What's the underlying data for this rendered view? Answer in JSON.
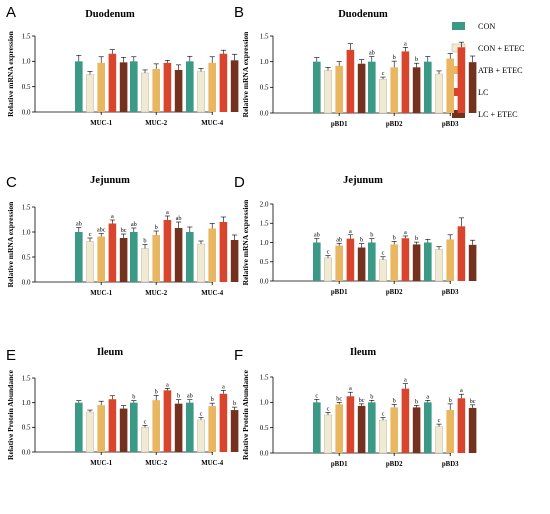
{
  "legend": {
    "entries": [
      {
        "name": "CON",
        "color": "#3a9a86"
      },
      {
        "name": "CON + ETEC",
        "color": "#f1ead3"
      },
      {
        "name": "ATB + ETEC",
        "color": "#e9b761"
      },
      {
        "name": "LC",
        "color": "#d9452c"
      },
      {
        "name": "LC + ETEC",
        "color": "#74311e"
      }
    ]
  },
  "chart_data": [
    {
      "panel": "A",
      "type": "bar",
      "title": "Duodenum",
      "xlabel": "",
      "ylabel": "Relative mRNA expression",
      "ylim": [
        0,
        1.5
      ],
      "yticks": [
        0.0,
        0.5,
        1.0,
        1.5
      ],
      "categories": [
        "MUC-1",
        "MUC-2",
        "MUC-4"
      ],
      "series": [
        {
          "name": "CON",
          "values": [
            1.0,
            1.0,
            1.0
          ],
          "errors": [
            0.12,
            0.09,
            0.1
          ]
        },
        {
          "name": "CON + ETEC",
          "values": [
            0.74,
            0.77,
            0.8
          ],
          "errors": [
            0.06,
            0.06,
            0.06
          ]
        },
        {
          "name": "ATB + ETEC",
          "values": [
            0.97,
            0.85,
            0.97
          ],
          "errors": [
            0.12,
            0.1,
            0.12
          ]
        },
        {
          "name": "LC",
          "values": [
            1.15,
            0.97,
            1.15
          ],
          "errors": [
            0.08,
            0.05,
            0.07
          ]
        },
        {
          "name": "LC + ETEC",
          "values": [
            0.98,
            0.83,
            1.02
          ],
          "errors": [
            0.1,
            0.1,
            0.12
          ]
        }
      ],
      "labels": [
        [
          "",
          "",
          "",
          "",
          ""
        ],
        [
          "",
          "",
          "",
          "",
          ""
        ],
        [
          "",
          "",
          "",
          "",
          ""
        ]
      ]
    },
    {
      "panel": "B",
      "type": "bar",
      "title": "Duodenum",
      "xlabel": "",
      "ylabel": "Relative mRNA expression",
      "ylim": [
        0,
        1.5
      ],
      "yticks": [
        0.0,
        0.5,
        1.0,
        1.5
      ],
      "categories": [
        "pBD1",
        "pBD2",
        "pBD3"
      ],
      "series": [
        {
          "name": "CON",
          "values": [
            1.0,
            1.0,
            1.0
          ],
          "errors": [
            0.08,
            0.1,
            0.1
          ]
        },
        {
          "name": "CON + ETEC",
          "values": [
            0.83,
            0.66,
            0.76
          ],
          "errors": [
            0.06,
            0.04,
            0.06
          ]
        },
        {
          "name": "ATB + ETEC",
          "values": [
            0.92,
            0.89,
            1.06
          ],
          "errors": [
            0.08,
            0.12,
            0.1
          ]
        },
        {
          "name": "LC",
          "values": [
            1.23,
            1.2,
            1.28
          ],
          "errors": [
            0.12,
            0.08,
            0.1
          ]
        },
        {
          "name": "LC + ETEC",
          "values": [
            0.96,
            0.89,
            0.99
          ],
          "errors": [
            0.08,
            0.08,
            0.12
          ]
        }
      ],
      "labels": [
        [
          "",
          "",
          "",
          "",
          ""
        ],
        [
          "ab",
          "c",
          "b",
          "a",
          "b"
        ],
        [
          "",
          "",
          "",
          "",
          ""
        ]
      ]
    },
    {
      "panel": "C",
      "type": "bar",
      "title": "Jejunum",
      "xlabel": "",
      "ylabel": "Relative mRNA expression",
      "ylim": [
        0,
        1.5
      ],
      "yticks": [
        0.0,
        0.5,
        1.0,
        1.5
      ],
      "categories": [
        "MUC-1",
        "MUC-2",
        "MUC-4"
      ],
      "series": [
        {
          "name": "CON",
          "values": [
            1.0,
            1.0,
            1.0
          ],
          "errors": [
            0.09,
            0.08,
            0.1
          ]
        },
        {
          "name": "CON + ETEC",
          "values": [
            0.81,
            0.67,
            0.76
          ],
          "errors": [
            0.07,
            0.08,
            0.06
          ]
        },
        {
          "name": "ATB + ETEC",
          "values": [
            0.91,
            0.94,
            1.07
          ],
          "errors": [
            0.06,
            0.08,
            0.1
          ]
        },
        {
          "name": "LC",
          "values": [
            1.17,
            1.24,
            1.2
          ],
          "errors": [
            0.07,
            0.08,
            0.1
          ]
        },
        {
          "name": "LC + ETEC",
          "values": [
            0.88,
            1.08,
            0.84
          ],
          "errors": [
            0.08,
            0.12,
            0.1
          ]
        }
      ],
      "labels": [
        [
          "ab",
          "c",
          "abc",
          "a",
          "bc"
        ],
        [
          "ab",
          "b",
          "b",
          "a",
          "ab"
        ],
        [
          "",
          "",
          "",
          "",
          ""
        ]
      ]
    },
    {
      "panel": "D",
      "type": "bar",
      "title": "Jejunum",
      "xlabel": "",
      "ylabel": "Relative mRNA expression",
      "ylim": [
        0,
        2.0
      ],
      "yticks": [
        0.0,
        0.5,
        1.0,
        1.5,
        2.0
      ],
      "categories": [
        "pBD1",
        "pBD2",
        "pBD3"
      ],
      "series": [
        {
          "name": "CON",
          "values": [
            1.0,
            1.0,
            1.0
          ],
          "errors": [
            0.1,
            0.1,
            0.08
          ]
        },
        {
          "name": "CON + ETEC",
          "values": [
            0.6,
            0.55,
            0.82
          ],
          "errors": [
            0.06,
            0.08,
            0.07
          ]
        },
        {
          "name": "ATB + ETEC",
          "values": [
            0.92,
            0.95,
            1.08
          ],
          "errors": [
            0.06,
            0.08,
            0.12
          ]
        },
        {
          "name": "LC",
          "values": [
            1.1,
            1.11,
            1.42
          ],
          "errors": [
            0.1,
            0.06,
            0.22
          ]
        },
        {
          "name": "LC + ETEC",
          "values": [
            0.87,
            0.95,
            0.94
          ],
          "errors": [
            0.1,
            0.06,
            0.12
          ]
        }
      ],
      "labels": [
        [
          "ab",
          "c",
          "ab",
          "a",
          "b"
        ],
        [
          "b",
          "c",
          "b",
          "a",
          "b"
        ],
        [
          "",
          "",
          "",
          "",
          ""
        ]
      ]
    },
    {
      "panel": "E",
      "type": "bar",
      "title": "Ileum",
      "xlabel": "",
      "ylabel": "Relative Protein Abundance",
      "ylim": [
        0,
        1.5
      ],
      "yticks": [
        0.0,
        0.5,
        1.0,
        1.5
      ],
      "categories": [
        "MUC-1",
        "MUC-2",
        "MUC-4"
      ],
      "series": [
        {
          "name": "CON",
          "values": [
            1.0,
            1.0,
            1.0
          ],
          "errors": [
            0.04,
            0.04,
            0.06
          ]
        },
        {
          "name": "CON + ETEC",
          "values": [
            0.81,
            0.5,
            0.65
          ],
          "errors": [
            0.04,
            0.04,
            0.05
          ]
        },
        {
          "name": "ATB + ETEC",
          "values": [
            0.95,
            1.05,
            0.93
          ],
          "errors": [
            0.08,
            0.1,
            0.06
          ]
        },
        {
          "name": "LC",
          "values": [
            1.07,
            1.25,
            1.18
          ],
          "errors": [
            0.07,
            0.04,
            0.07
          ]
        },
        {
          "name": "LC + ETEC",
          "values": [
            0.88,
            0.98,
            0.85
          ],
          "errors": [
            0.06,
            0.08,
            0.06
          ]
        }
      ],
      "labels": [
        [
          "",
          "",
          "",
          "",
          ""
        ],
        [
          "b",
          "c",
          "b",
          "a",
          "b"
        ],
        [
          "ab",
          "c",
          "b",
          "a",
          "b"
        ]
      ]
    },
    {
      "panel": "F",
      "type": "bar",
      "title": "Ileum",
      "xlabel": "",
      "ylabel": "Relative Protein Abundance",
      "ylim": [
        0,
        1.5
      ],
      "yticks": [
        0.0,
        0.5,
        1.0,
        1.5
      ],
      "categories": [
        "pBD1",
        "pBD2",
        "pBD3"
      ],
      "series": [
        {
          "name": "CON",
          "values": [
            1.0,
            1.0,
            1.0
          ],
          "errors": [
            0.06,
            0.04,
            0.04
          ]
        },
        {
          "name": "CON + ETEC",
          "values": [
            0.75,
            0.65,
            0.52
          ],
          "errors": [
            0.05,
            0.05,
            0.05
          ]
        },
        {
          "name": "ATB + ETEC",
          "values": [
            0.96,
            0.9,
            0.85
          ],
          "errors": [
            0.04,
            0.06,
            0.12
          ]
        },
        {
          "name": "LC",
          "values": [
            1.12,
            1.27,
            1.08
          ],
          "errors": [
            0.08,
            0.1,
            0.08
          ]
        },
        {
          "name": "LC + ETEC",
          "values": [
            0.93,
            0.9,
            0.89
          ],
          "errors": [
            0.04,
            0.04,
            0.06
          ]
        }
      ],
      "labels": [
        [
          "c",
          "c",
          "bc",
          "a",
          "bc"
        ],
        [
          "b",
          "c",
          "b",
          "a",
          "b"
        ],
        [
          "a",
          "c",
          "b",
          "a",
          "bc"
        ]
      ]
    }
  ]
}
